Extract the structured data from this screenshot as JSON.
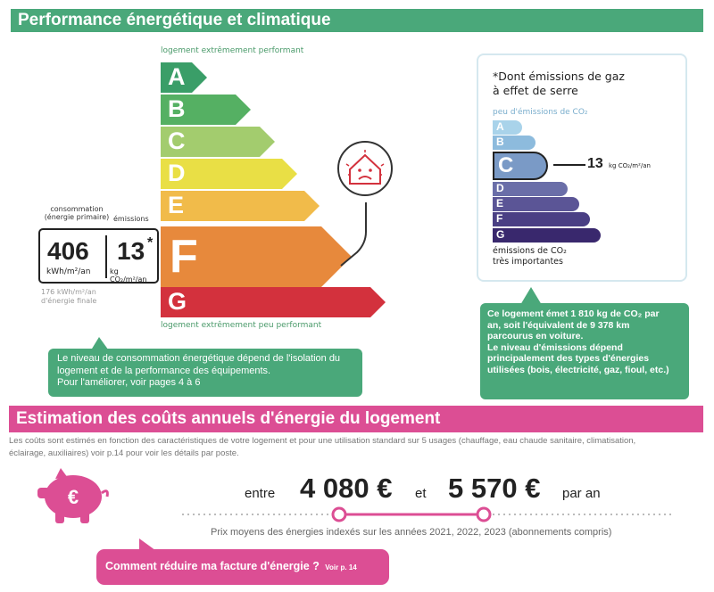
{
  "performance": {
    "title": "Performance énergétique et climatique",
    "top_label": "logement extrêmement performant",
    "bottom_label": "logement extrêmement peu performant",
    "classes": [
      {
        "letter": "A",
        "color": "#3a9e68"
      },
      {
        "letter": "B",
        "color": "#55b063"
      },
      {
        "letter": "C",
        "color": "#a3cc6e"
      },
      {
        "letter": "D",
        "color": "#e9df45"
      },
      {
        "letter": "E",
        "color": "#f1bb4a"
      },
      {
        "letter": "F",
        "color": "#e7893c"
      },
      {
        "letter": "G",
        "color": "#d3313d"
      }
    ],
    "current_class": "F",
    "consumption_label_line1": "consommation",
    "consumption_label_line2": "(énergie primaire)",
    "emissions_label": "émissions",
    "consumption_value": "406",
    "consumption_unit": "kWh/m²/an",
    "emissions_value": "13",
    "emissions_asterisk": "*",
    "emissions_unit": "kg CO₂/m²/an",
    "final_energy_line1": "176 kWh/m²/an",
    "final_energy_line2": "d'énergie finale",
    "callout_lines": [
      "Le niveau de consommation énergétique dépend de l'isolation du",
      "logement et de la performance des équipements.",
      "Pour l'améliorer, voir pages 4 à 6"
    ]
  },
  "co2": {
    "title_line1": "*Dont émissions de gaz",
    "title_line2": "à effet de serre",
    "top_label": "peu d'émissions de CO₂",
    "classes": [
      {
        "letter": "A",
        "color": "#a9d3ea"
      },
      {
        "letter": "B",
        "color": "#8dbbdd"
      },
      {
        "letter": "C",
        "color": "#7a9ac6"
      },
      {
        "letter": "D",
        "color": "#6a6ea8"
      },
      {
        "letter": "E",
        "color": "#5b5596"
      },
      {
        "letter": "F",
        "color": "#4a3f84"
      },
      {
        "letter": "G",
        "color": "#39286d"
      }
    ],
    "current_class": "C",
    "current_value": "13",
    "current_unit": "kg CO₂/m²/an",
    "bottom_label_line1": "émissions de CO₂",
    "bottom_label_line2": "très importantes",
    "callout_lines": [
      "Ce logement émet 1 810 kg de CO₂ par",
      "an, soit l'équivalent de 9 378 km",
      "parcourus en voiture.",
      "Le niveau d'émissions dépend",
      "principalement des types d'énergies",
      "utilisées (bois, électricité, gaz, fioul, etc.)"
    ]
  },
  "costs": {
    "title": "Estimation des coûts annuels d'énergie du logement",
    "description_line1": "Les coûts sont estimés en fonction des caractéristiques de votre logement et pour une utilisation standard sur 5 usages (chauffage, eau chaude sanitaire, climatisation,",
    "description_line2": "éclairage, auxiliaires) voir p.14 pour voir les détails par poste.",
    "piggy_symbol": "€",
    "prefix": "entre",
    "low": "4 080 €",
    "connector": "et",
    "high": "5 570 €",
    "suffix": "par an",
    "note": "Prix moyens des énergies indexés sur les années 2021, 2022, 2023 (abonnements compris)",
    "cta_label": "Comment réduire ma facture d'énergie ?",
    "cta_ref": "Voir p. 14"
  }
}
